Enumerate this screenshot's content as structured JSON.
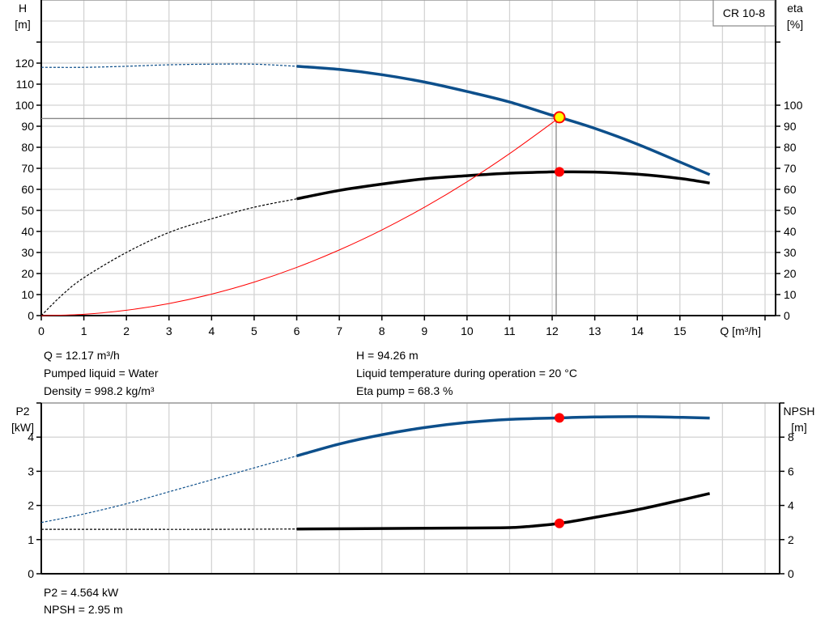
{
  "chart_data": [
    {
      "type": "line",
      "model_label": "CR 10-8",
      "xlabel": "Q [m³/h]",
      "ylabel_left": [
        "H",
        "[m]"
      ],
      "ylabel_right": [
        "eta",
        "[%]"
      ],
      "xlim": [
        0,
        17
      ],
      "ylim_left": [
        0,
        150
      ],
      "ylim_right": [
        0,
        150
      ],
      "x_ticks": [
        "0",
        "1",
        "2",
        "3",
        "4",
        "5",
        "6",
        "7",
        "8",
        "9",
        "10",
        "11",
        "12",
        "13",
        "14",
        "15"
      ],
      "y_ticks_left": [
        "0",
        "10",
        "20",
        "30",
        "40",
        "50",
        "60",
        "70",
        "80",
        "90",
        "100",
        "110",
        "120"
      ],
      "y_ticks_right": [
        "0",
        "10",
        "20",
        "30",
        "40",
        "50",
        "60",
        "70",
        "80",
        "90",
        "100"
      ],
      "grid": true,
      "series": [
        {
          "id": "head",
          "axis": "left",
          "color": "#0d4f8b",
          "dashed_until": 6,
          "x": [
            0,
            1,
            2,
            3,
            4,
            5,
            6,
            7,
            8,
            9,
            10,
            11,
            12,
            12.17,
            13,
            14,
            15,
            15.7
          ],
          "y": [
            118,
            118,
            118.5,
            119.2,
            119.5,
            119.5,
            118.5,
            117,
            114.5,
            111,
            106.5,
            101.5,
            95.2,
            94.26,
            89,
            81.5,
            73,
            67
          ]
        },
        {
          "id": "eta",
          "axis": "right",
          "color": "#000000",
          "dashed_until": 6,
          "x": [
            0,
            0.5,
            1,
            2,
            3,
            4,
            5,
            6,
            7,
            8,
            9,
            10,
            11,
            12,
            12.17,
            13,
            14,
            15,
            15.7
          ],
          "y": [
            0,
            10,
            18,
            30,
            39.5,
            46,
            51.5,
            55.5,
            59.5,
            62.5,
            65,
            66.5,
            67.7,
            68.3,
            68.3,
            68.2,
            67.2,
            65.2,
            63
          ]
        },
        {
          "id": "system-curve",
          "axis": "left",
          "color": "#ff0000",
          "x": [
            0,
            1,
            2,
            3,
            4,
            5,
            6,
            7,
            8,
            9,
            10,
            11,
            12,
            12.17
          ],
          "y": [
            0,
            0.64,
            2.54,
            5.73,
            10.2,
            15.9,
            22.9,
            31.2,
            40.7,
            51.5,
            63.6,
            77,
            91.6,
            94.26
          ]
        }
      ],
      "operating_point": {
        "q": 12.17,
        "h": 94.26,
        "eta": 68.3
      }
    },
    {
      "type": "line",
      "ylabel_left": [
        "P2",
        "[kW]"
      ],
      "ylabel_right": [
        "NPSH",
        "[m]"
      ],
      "xlim": [
        0,
        17
      ],
      "ylim_left": [
        0,
        5
      ],
      "ylim_right": [
        0,
        10
      ],
      "y_ticks_left": [
        "0",
        "1",
        "2",
        "3",
        "4"
      ],
      "y_ticks_right": [
        "0",
        "2",
        "4",
        "6",
        "8"
      ],
      "grid": true,
      "series": [
        {
          "id": "p2",
          "axis": "left",
          "color": "#0d4f8b",
          "dashed_until": 6,
          "x": [
            0,
            1,
            2,
            3,
            4,
            5,
            6,
            7,
            8,
            9,
            10,
            11,
            12,
            12.17,
            13,
            14,
            15,
            15.7
          ],
          "y": [
            1.5,
            1.75,
            2.05,
            2.4,
            2.75,
            3.1,
            3.45,
            3.8,
            4.07,
            4.28,
            4.43,
            4.52,
            4.56,
            4.564,
            4.59,
            4.6,
            4.58,
            4.56
          ]
        },
        {
          "id": "npsh",
          "axis": "right",
          "color": "#000000",
          "dashed_until": 6,
          "x": [
            0,
            2,
            4,
            6,
            8,
            10,
            11,
            11.5,
            12.17,
            13,
            14,
            15,
            15.7
          ],
          "y": [
            2.6,
            2.6,
            2.6,
            2.62,
            2.65,
            2.68,
            2.7,
            2.78,
            2.95,
            3.3,
            3.75,
            4.3,
            4.7
          ]
        }
      ],
      "operating_point": {
        "q": 12.17,
        "p2": 4.564,
        "npsh": 2.95
      }
    }
  ],
  "info_top": {
    "q": "Q = 12.17 m³/h",
    "liquid": "Pumped liquid = Water",
    "density": "Density = 998.2 kg/m³",
    "h": "H = 94.26 m",
    "temp": "Liquid temperature during operation = 20 °C",
    "eta": "Eta pump = 68.3 %"
  },
  "info_bottom": {
    "p2": "P2 = 4.564 kW",
    "npsh": "NPSH = 2.95 m"
  }
}
